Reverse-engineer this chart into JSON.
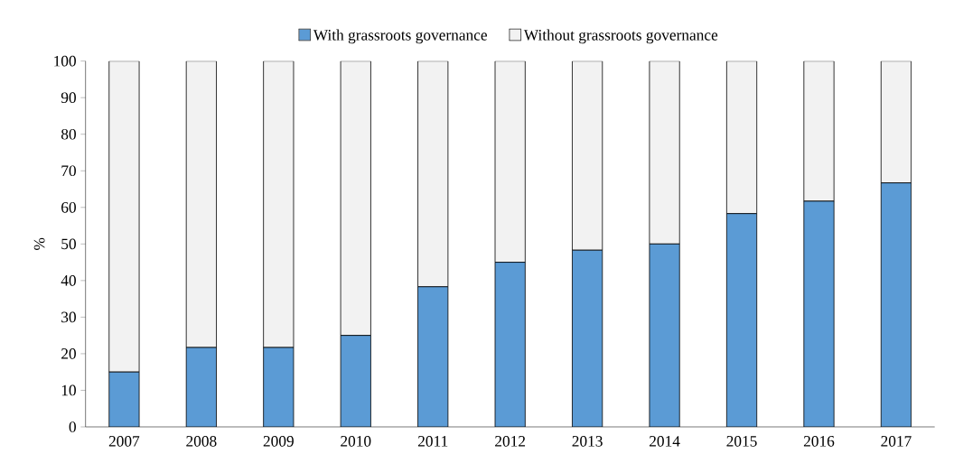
{
  "chart_data": {
    "type": "bar",
    "stacked": true,
    "ylabel": "%",
    "categories": [
      "2007",
      "2008",
      "2009",
      "2010",
      "2011",
      "2012",
      "2013",
      "2014",
      "2015",
      "2016",
      "2017"
    ],
    "series": [
      {
        "name": "With grassroots governance",
        "color": "#5b9bd5",
        "values": [
          15,
          21.7,
          21.7,
          25,
          38.3,
          45,
          48.3,
          50,
          58.3,
          61.7,
          66.7
        ]
      },
      {
        "name": "Without grassroots governance",
        "color": "#f2f2f2",
        "values": [
          85,
          78.3,
          78.3,
          75,
          61.7,
          55,
          51.7,
          50,
          41.7,
          38.3,
          33.3
        ]
      }
    ],
    "ylim": [
      0,
      100
    ],
    "yticks": [
      0,
      10,
      20,
      30,
      40,
      50,
      60,
      70,
      80,
      90,
      100
    ],
    "legend": "top"
  }
}
